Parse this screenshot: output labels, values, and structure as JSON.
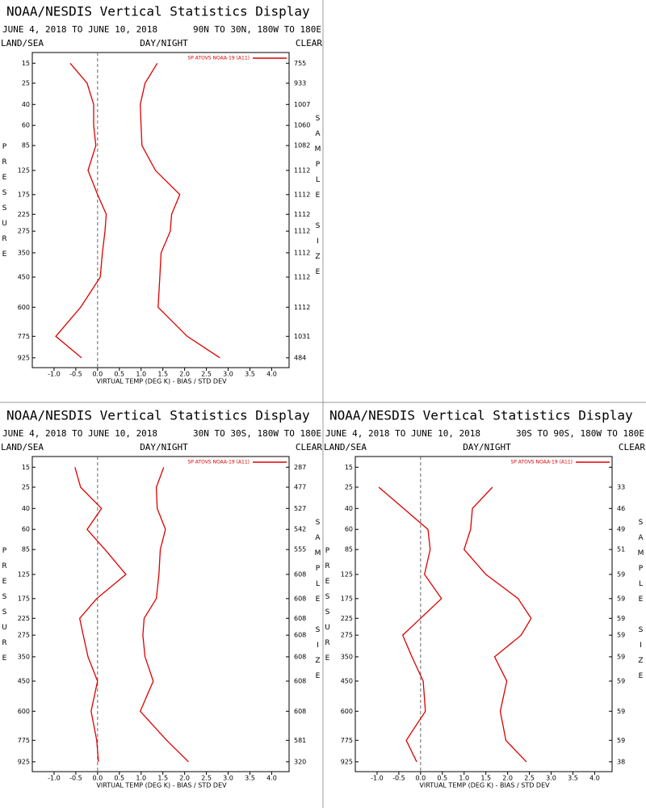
{
  "chart_data": [
    {
      "type": "line",
      "title": "NOAA/NESDIS Vertical Statistics Display",
      "subtitle": "JUNE 4, 2018 TO JUNE 10, 2018",
      "region": "90N TO 30N, 180W TO 180E",
      "land_sea": "LAND/SEA",
      "day_night": "DAY/NIGHT",
      "clear": "CLEAR",
      "ylabel": "PRESSURE",
      "y2label": "SAMPLE SIZE",
      "xlabel": "VIRTUAL TEMP (DEG K) - BIAS / STD DEV",
      "y": [
        15,
        25,
        40,
        60,
        85,
        125,
        175,
        225,
        275,
        350,
        450,
        600,
        775,
        925
      ],
      "ylim": [
        11,
        1000
      ],
      "sample_size": [
        755,
        933,
        1007,
        1060,
        1082,
        1112,
        1112,
        1112,
        1112,
        1112,
        1112,
        1112,
        1031,
        484
      ],
      "series": [
        {
          "name": "SP ATOVS NOAA-19 (A11)",
          "color": "#dd0000",
          "bias": [
            -0.63,
            -0.24,
            -0.09,
            -0.09,
            -0.04,
            -0.22,
            0.0,
            0.2,
            0.17,
            0.11,
            0.06,
            -0.39,
            -0.96,
            -0.37
          ],
          "std_dev": [
            1.37,
            1.09,
            0.98,
            1.0,
            1.02,
            1.33,
            1.89,
            1.7,
            1.67,
            1.46,
            1.43,
            1.39,
            2.06,
            2.81
          ]
        }
      ],
      "xlim": [
        -1.5,
        4.4
      ],
      "xticks": [
        {
          "value": -1,
          "label": "-1.0"
        },
        -0.5,
        {
          "value": 0,
          "label": "0.0"
        },
        0.5,
        {
          "value": 1,
          "label": "1.0"
        },
        1.5,
        {
          "value": 2,
          "label": "2.0"
        },
        2.5,
        {
          "value": 3,
          "label": "3.0"
        },
        3.5,
        {
          "value": 4,
          "label": "4.0"
        }
      ]
    },
    {
      "type": "line",
      "title": "NOAA/NESDIS Vertical Statistics Display",
      "subtitle": "JUNE 4, 2018 TO JUNE 10, 2018",
      "region": "30N TO 30S, 180W TO 180E",
      "land_sea": "LAND/SEA",
      "day_night": "DAY/NIGHT",
      "clear": "CLEAR",
      "ylabel": "PRESSURE",
      "y2label": "SAMPLE SIZE",
      "xlabel": "VIRTUAL TEMP (DEG K) - BIAS / STD DEV",
      "y": [
        15,
        25,
        40,
        60,
        85,
        125,
        175,
        225,
        275,
        350,
        450,
        600,
        775,
        925
      ],
      "ylim": [
        11,
        1000
      ],
      "sample_size": [
        287,
        477,
        527,
        542,
        555,
        608,
        608,
        608,
        608,
        608,
        608,
        608,
        581,
        320
      ],
      "series": [
        {
          "name": "SP ATOVS NOAA-19 (A11)",
          "color": "#dd0000",
          "bias": [
            -0.52,
            -0.39,
            0.09,
            -0.24,
            0.17,
            0.65,
            -0.02,
            -0.41,
            -0.33,
            -0.22,
            0.0,
            -0.15,
            -0.02,
            0.02
          ],
          "std_dev": [
            1.52,
            1.35,
            1.37,
            1.56,
            1.44,
            1.41,
            1.35,
            1.07,
            1.04,
            1.09,
            1.28,
            0.98,
            1.59,
            2.09
          ]
        }
      ],
      "xlim": [
        -1.5,
        4.4
      ],
      "xticks": [
        {
          "value": -1,
          "label": "-1.0"
        },
        -0.5,
        {
          "value": 0,
          "label": "0.0"
        },
        0.5,
        {
          "value": 1,
          "label": "1.0"
        },
        1.5,
        {
          "value": 2,
          "label": "2.0"
        },
        2.5,
        {
          "value": 3,
          "label": "3.0"
        },
        3.5,
        {
          "value": 4,
          "label": "4.0"
        }
      ]
    },
    {
      "type": "line",
      "title": "NOAA/NESDIS Vertical Statistics Display",
      "subtitle": "JUNE 4, 2018 TO JUNE 10, 2018",
      "region": "30S TO 90S, 180W TO 180E",
      "land_sea": "LAND/SEA",
      "day_night": "DAY/NIGHT",
      "clear": "CLEAR",
      "ylabel": "PRESSURE",
      "y2label": "SAMPLE SIZE",
      "xlabel": "VIRTUAL TEMP (DEG K) - BIAS / STD DEV",
      "y": [
        15,
        25,
        40,
        60,
        85,
        125,
        175,
        225,
        275,
        350,
        450,
        600,
        775,
        925
      ],
      "ylim": [
        11,
        1000
      ],
      "sample_size": [
        null,
        33,
        46,
        49,
        51,
        59,
        59,
        59,
        59,
        59,
        59,
        59,
        59,
        38
      ],
      "series": [
        {
          "name": "SP ATOVS NOAA-19 (A11)",
          "color": "#dd0000",
          "bias": [
            null,
            -0.96,
            -0.39,
            0.17,
            0.22,
            0.09,
            0.48,
            0.0,
            -0.41,
            -0.2,
            0.06,
            0.11,
            -0.33,
            -0.09
          ],
          "std_dev": [
            null,
            1.65,
            1.19,
            1.15,
            1.0,
            1.5,
            2.24,
            2.54,
            2.31,
            1.7,
            1.98,
            1.83,
            1.96,
            2.43
          ]
        }
      ],
      "xlim": [
        -1.5,
        4.4
      ],
      "xticks": [
        {
          "value": -1,
          "label": "-1.0"
        },
        -0.5,
        {
          "value": 0,
          "label": "0.0"
        },
        0.5,
        {
          "value": 1,
          "label": "1.0"
        },
        1.5,
        {
          "value": 2,
          "label": "2.0"
        },
        2.5,
        {
          "value": 3,
          "label": "3.0"
        },
        3.5,
        {
          "value": 4,
          "label": "4.0"
        }
      ]
    }
  ]
}
